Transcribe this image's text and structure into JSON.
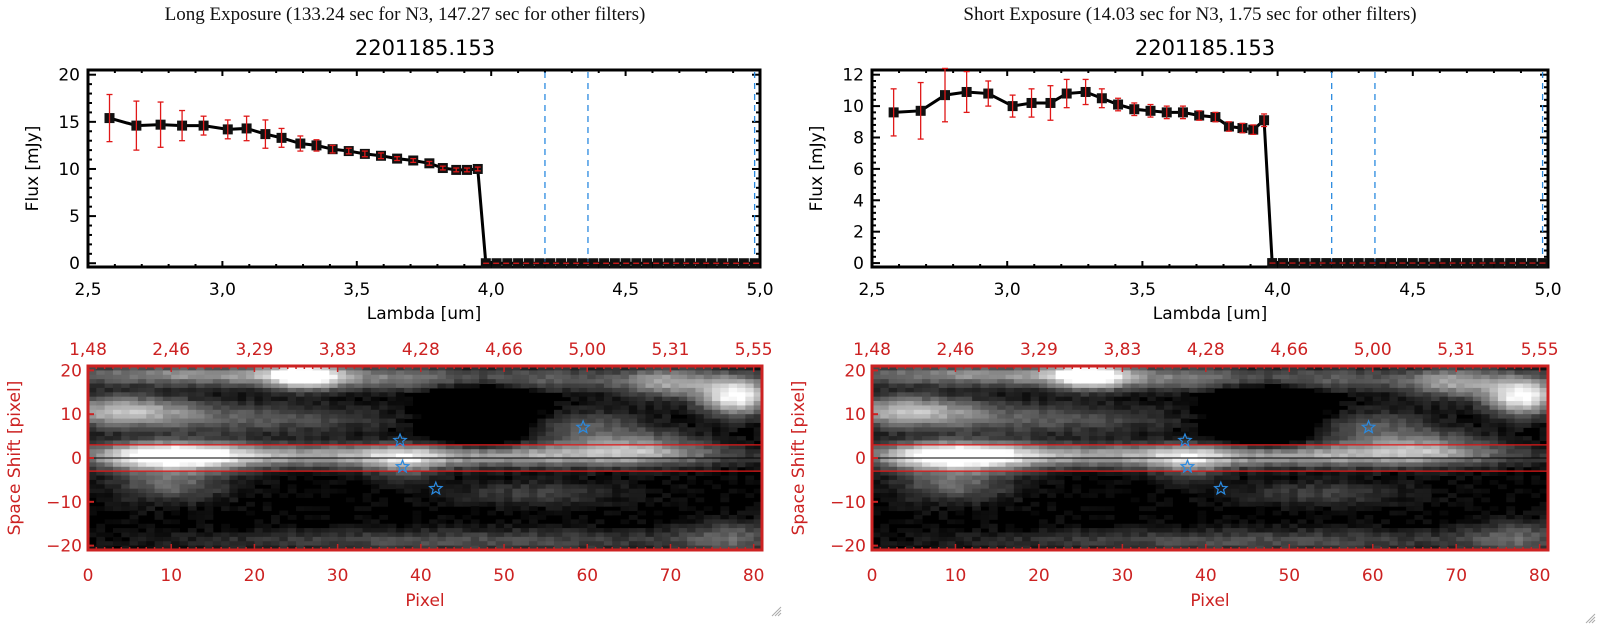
{
  "panels": [
    {
      "title": "Long Exposure (133.24 sec for N3, 147.27 sec for other filters)",
      "object_id": "2201185.153"
    },
    {
      "title": "Short Exposure (14.03 sec for N3, 1.75 sec for other filters)",
      "object_id": "2201185.153"
    }
  ],
  "colors": {
    "line": "#000000",
    "error_bar": "#e01818",
    "marker_vline": "#2a8ae0",
    "image_axis": "#cc2222",
    "zero_line": "#e01818",
    "star": "#2a8ae0"
  },
  "chart_data": [
    {
      "type": "line",
      "title": "2201185.153",
      "xlabel": "Lambda [um]",
      "ylabel": "Flux [mJy]",
      "xlim": [
        2.5,
        5.0
      ],
      "ylim": [
        -0.4,
        20.5
      ],
      "xticks": [
        "2.5",
        "3.0",
        "3.5",
        "4.0",
        "4.5",
        "5.0"
      ],
      "yticks": [
        "0",
        "5",
        "10",
        "15",
        "20"
      ],
      "ytick_values": [
        0,
        5,
        10,
        15,
        20
      ],
      "xtick_values": [
        2.5,
        3.0,
        3.5,
        4.0,
        4.5,
        5.0
      ],
      "grid": false,
      "series": [
        {
          "name": "Flux",
          "x": [
            2.58,
            2.68,
            2.77,
            2.85,
            2.93,
            3.02,
            3.09,
            3.16,
            3.22,
            3.29,
            3.35,
            3.41,
            3.47,
            3.53,
            3.59,
            3.65,
            3.71,
            3.77,
            3.82,
            3.87,
            3.91,
            3.95
          ],
          "y": [
            15.4,
            14.6,
            14.7,
            14.6,
            14.6,
            14.2,
            14.3,
            13.7,
            13.3,
            12.7,
            12.5,
            12.1,
            11.9,
            11.6,
            11.4,
            11.1,
            10.9,
            10.6,
            10.1,
            9.9,
            9.9,
            10.0
          ],
          "yerr": [
            2.5,
            2.6,
            2.4,
            1.6,
            1.0,
            1.0,
            1.3,
            1.5,
            1.0,
            0.8,
            0.6,
            0.4,
            0.3,
            0.3,
            0.3,
            0.2,
            0.2,
            0.2,
            0.2,
            0.2,
            0.2,
            0.2
          ]
        },
        {
          "name": "Zero flux",
          "x": [
            3.98,
            4.02,
            4.06,
            4.1,
            4.14,
            4.18,
            4.22,
            4.26,
            4.3,
            4.34,
            4.38,
            4.42,
            4.46,
            4.5,
            4.54,
            4.58,
            4.62,
            4.66,
            4.7,
            4.74,
            4.78,
            4.82,
            4.86,
            4.9,
            4.94,
            4.98
          ],
          "y": [
            0,
            0,
            0,
            0,
            0,
            0,
            0,
            0,
            0,
            0,
            0,
            0,
            0,
            0,
            0,
            0,
            0,
            0,
            0,
            0,
            0,
            0,
            0,
            0,
            0,
            0
          ]
        }
      ],
      "vlines": [
        4.2,
        4.36,
        4.98
      ],
      "hline": 0
    },
    {
      "type": "line",
      "title": "2201185.153",
      "xlabel": "Lambda [um]",
      "ylabel": "Flux [mJy]",
      "xlim": [
        2.5,
        5.0
      ],
      "ylim": [
        -0.25,
        12.3
      ],
      "xticks": [
        "2.5",
        "3.0",
        "3.5",
        "4.0",
        "4.5",
        "5.0"
      ],
      "yticks": [
        "0",
        "2",
        "4",
        "6",
        "8",
        "10",
        "12"
      ],
      "ytick_values": [
        0,
        2,
        4,
        6,
        8,
        10,
        12
      ],
      "xtick_values": [
        2.5,
        3.0,
        3.5,
        4.0,
        4.5,
        5.0
      ],
      "grid": false,
      "series": [
        {
          "name": "Flux",
          "x": [
            2.58,
            2.68,
            2.77,
            2.85,
            2.93,
            3.02,
            3.09,
            3.16,
            3.22,
            3.29,
            3.35,
            3.41,
            3.47,
            3.53,
            3.59,
            3.65,
            3.71,
            3.77,
            3.82,
            3.87,
            3.91,
            3.95
          ],
          "y": [
            9.6,
            9.7,
            10.7,
            10.9,
            10.8,
            10.0,
            10.2,
            10.2,
            10.8,
            10.9,
            10.5,
            10.1,
            9.8,
            9.7,
            9.6,
            9.6,
            9.4,
            9.3,
            8.7,
            8.6,
            8.5,
            9.1
          ],
          "yerr": [
            1.5,
            1.8,
            1.7,
            1.3,
            0.8,
            0.7,
            0.9,
            1.1,
            0.9,
            0.8,
            0.6,
            0.4,
            0.4,
            0.4,
            0.4,
            0.4,
            0.3,
            0.3,
            0.3,
            0.3,
            0.3,
            0.4
          ]
        },
        {
          "name": "Zero flux",
          "x": [
            3.98,
            4.02,
            4.06,
            4.1,
            4.14,
            4.18,
            4.22,
            4.26,
            4.3,
            4.34,
            4.38,
            4.42,
            4.46,
            4.5,
            4.54,
            4.58,
            4.62,
            4.66,
            4.7,
            4.74,
            4.78,
            4.82,
            4.86,
            4.9,
            4.94,
            4.98
          ],
          "y": [
            0,
            0,
            0,
            0,
            0,
            0,
            0,
            0,
            0,
            0,
            0,
            0,
            0,
            0,
            0,
            0,
            0,
            0,
            0,
            0,
            0,
            0,
            0,
            0,
            0,
            0
          ]
        }
      ],
      "vlines": [
        4.2,
        4.36,
        4.98
      ],
      "hline": 0
    },
    {
      "type": "heatmap",
      "xlabel": "Pixel",
      "ylabel": "Space Shift [pixel]",
      "xlim": [
        0,
        81
      ],
      "ylim": [
        -21,
        21
      ],
      "xticks": [
        "0",
        "10",
        "20",
        "30",
        "40",
        "50",
        "60",
        "70",
        "80"
      ],
      "xtick_values": [
        0,
        10,
        20,
        30,
        40,
        50,
        60,
        70,
        80
      ],
      "yticks": [
        "-20",
        "-10",
        "0",
        "10",
        "20"
      ],
      "ytick_values": [
        -20,
        -10,
        0,
        10,
        20
      ],
      "top_xticks": [
        "1.48",
        "2.46",
        "3.29",
        "3.83",
        "4.28",
        "4.66",
        "5.00",
        "5.31",
        "5.55"
      ],
      "aperture_lines": [
        3,
        -3
      ],
      "center_line": 0,
      "stars": [
        {
          "x": 37.5,
          "y": 4
        },
        {
          "x": 37.8,
          "y": -2
        },
        {
          "x": 41.8,
          "y": -7
        },
        {
          "x": 59.5,
          "y": 7
        }
      ]
    },
    {
      "type": "heatmap",
      "xlabel": "Pixel",
      "ylabel": "Space Shift [pixel]",
      "xlim": [
        0,
        81
      ],
      "ylim": [
        -21,
        21
      ],
      "xticks": [
        "0",
        "10",
        "20",
        "30",
        "40",
        "50",
        "60",
        "70",
        "80"
      ],
      "xtick_values": [
        0,
        10,
        20,
        30,
        40,
        50,
        60,
        70,
        80
      ],
      "yticks": [
        "-20",
        "-10",
        "0",
        "10",
        "20"
      ],
      "ytick_values": [
        -20,
        -10,
        0,
        10,
        20
      ],
      "top_xticks": [
        "1.48",
        "2.46",
        "3.29",
        "3.83",
        "4.28",
        "4.66",
        "5.00",
        "5.31",
        "5.55"
      ],
      "aperture_lines": [
        3,
        -3
      ],
      "center_line": 0,
      "stars": [
        {
          "x": 37.5,
          "y": 4
        },
        {
          "x": 37.8,
          "y": -2
        },
        {
          "x": 41.8,
          "y": -7
        },
        {
          "x": 59.5,
          "y": 7
        }
      ]
    }
  ]
}
